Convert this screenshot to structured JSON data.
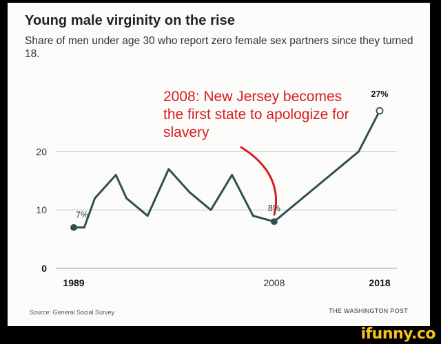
{
  "title": "Young male virginity on the rise",
  "subtitle": "Share of men under age 30 who report zero female sex partners since they turned 18.",
  "source": "Source: General Social Survey",
  "credit": "THE WASHINGTON POST",
  "annotation": "2008: New Jersey becomes the first state to apologize for slavery",
  "watermark": "ifunny.co",
  "colors": {
    "line": "#2f4f4f",
    "annotation": "#d62020",
    "grid": "#cccccc",
    "background": "#fbfbf9"
  },
  "chart_data": {
    "type": "line",
    "title": "Young male virginity on the rise",
    "xlabel": "",
    "ylabel": "",
    "xlim": [
      1989,
      2018
    ],
    "ylim": [
      0,
      27
    ],
    "grid": true,
    "x_ticks": [
      "1989",
      "2008",
      "2018"
    ],
    "y_ticks": [
      "0",
      "10",
      "20"
    ],
    "series": [
      {
        "name": "Share of men under 30 with zero female sex partners since 18",
        "x": [
          1989,
          1990,
          1991,
          1993,
          1994,
          1996,
          1998,
          2000,
          2002,
          2004,
          2006,
          2008,
          2016,
          2018
        ],
        "y": [
          7,
          7,
          12,
          16,
          12,
          9,
          17,
          13,
          10,
          16,
          9,
          8,
          20,
          27
        ]
      }
    ],
    "data_labels": [
      {
        "text": "7%",
        "x": 1989,
        "y": 7
      },
      {
        "text": "8%",
        "x": 2008,
        "y": 8
      },
      {
        "text": "27%",
        "x": 2018,
        "y": 27
      }
    ]
  }
}
